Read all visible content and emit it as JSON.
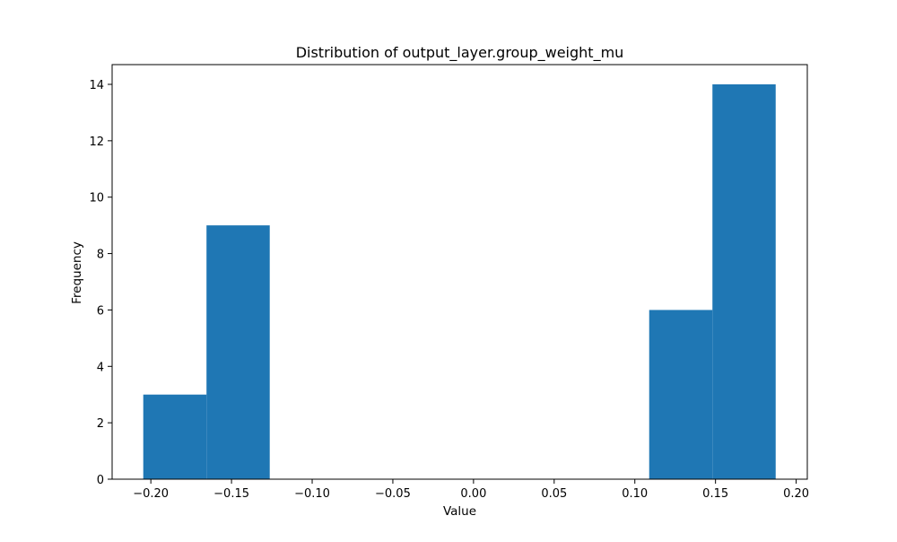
{
  "chart_data": {
    "type": "bar",
    "title": "Distribution of output_layer.group_weight_mu",
    "xlabel": "Value",
    "ylabel": "Frequency",
    "bin_edges": [
      -0.2047,
      -0.1655,
      -0.1263,
      -0.0871,
      -0.0479,
      -0.0087,
      0.0305,
      0.0697,
      0.1089,
      0.1481,
      0.1873
    ],
    "values": [
      3,
      9,
      0,
      0,
      0,
      0,
      0,
      0,
      6,
      14
    ],
    "xlim": [
      -0.224,
      0.2069
    ],
    "ylim": [
      0,
      14.7
    ],
    "xticks": [
      -0.2,
      -0.15,
      -0.1,
      -0.05,
      0.0,
      0.05,
      0.1,
      0.15,
      0.2
    ],
    "xtick_labels": [
      "−0.20",
      "−0.15",
      "−0.10",
      "−0.05",
      "0.00",
      "0.05",
      "0.10",
      "0.15",
      "0.20"
    ],
    "yticks": [
      0,
      2,
      4,
      6,
      8,
      10,
      12,
      14
    ],
    "ytick_labels": [
      "0",
      "2",
      "4",
      "6",
      "8",
      "10",
      "12",
      "14"
    ],
    "bar_color": "#1f77b4",
    "grid": false,
    "legend": "none"
  }
}
